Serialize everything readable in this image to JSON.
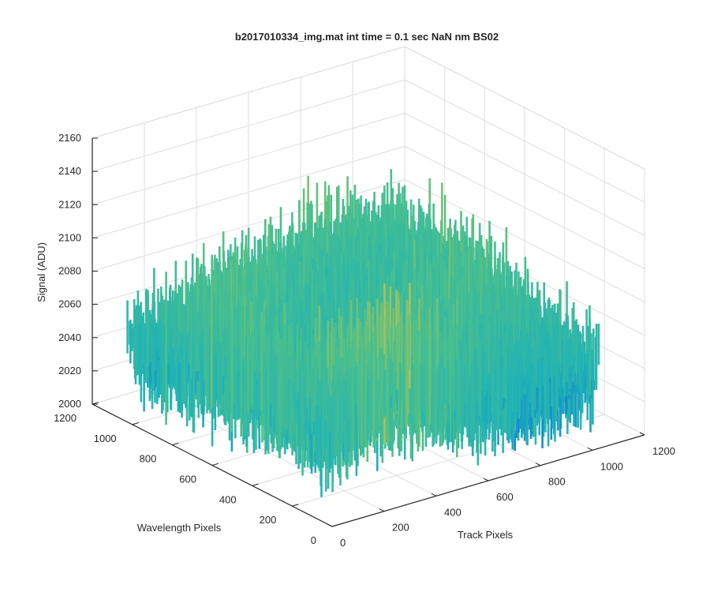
{
  "chart_data": {
    "type": "surface3d",
    "title": "b2017010334_img.mat int time = 0.1 sec  NaN nm BS02",
    "xlabel": "Track Pixels",
    "ylabel": "Wavelength Pixels",
    "zlabel": "Signal (ADU)",
    "xlim": [
      0,
      1200
    ],
    "ylim": [
      0,
      1200
    ],
    "zlim": [
      2000,
      2160
    ],
    "xticks": [
      "0",
      "200",
      "400",
      "600",
      "800",
      "1000",
      "1200"
    ],
    "yticks": [
      "0",
      "200",
      "400",
      "600",
      "800",
      "1000",
      "1200"
    ],
    "zticks": [
      "2000",
      "2020",
      "2040",
      "2060",
      "2080",
      "2100",
      "2120",
      "2140",
      "2160"
    ],
    "grid": true,
    "colormap": "parula",
    "surface_mean": 2060,
    "surface_range": [
      2010,
      2150
    ],
    "surface_extent": {
      "track": [
        0,
        1024
      ],
      "wavelength": [
        0,
        1024
      ]
    }
  },
  "colors": {
    "low": "#0a74d6",
    "mid": "#1fb2b8",
    "mid2": "#4cc08a",
    "high": "#e3c23a",
    "axis": "#262626",
    "grid": "#dedede"
  }
}
